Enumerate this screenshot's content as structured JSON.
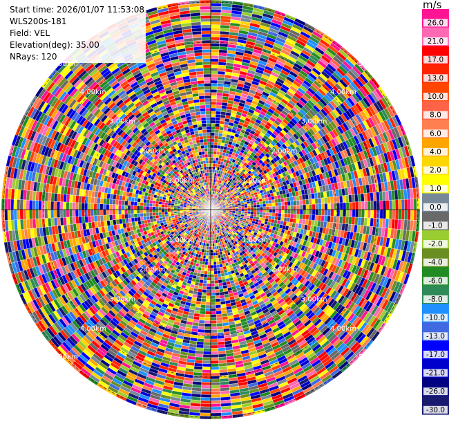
{
  "info": {
    "start_time": "Start time: 2026/01/07 11:53:08",
    "instrument": "WLS200s-181",
    "field": "Field: VEL",
    "elevation": "Elevation(deg): 35.00",
    "nrays": "NRays: 120"
  },
  "colorbar": {
    "unit": "m/s",
    "ticks": [
      "26.0",
      "21.0",
      "17.0",
      "13.0",
      "10.0",
      "8.0",
      "6.0",
      "4.0",
      "2.0",
      "1.0",
      "0.0",
      "-1.0",
      "-2.0",
      "-4.0",
      "-6.0",
      "-8.0",
      "-10.0",
      "-13.0",
      "-17.0",
      "-21.0",
      "-26.0",
      "-30.0"
    ],
    "colors": [
      "#ff1493",
      "#ff69b4",
      "#ff0000",
      "#ff2400",
      "#ff4500",
      "#ff6347",
      "#ff7f50",
      "#ffa500",
      "#ffd700",
      "#ffff00",
      "#778899",
      "#696969",
      "#9acd32",
      "#6b8e23",
      "#228b22",
      "#2e8b57",
      "#1e90ff",
      "#4169e1",
      "#0000ff",
      "#0000cd",
      "#000080",
      "#191970"
    ]
  },
  "chart_data": {
    "type": "ppi",
    "field": "VEL",
    "units": "m/s",
    "nrays": 120,
    "elevation_deg": 35.0,
    "range_rings": [
      "1.00km",
      "2.00km",
      "3.00km",
      "4.00km",
      "5.00km"
    ],
    "colorbar_range": [
      -30.0,
      26.0
    ]
  }
}
